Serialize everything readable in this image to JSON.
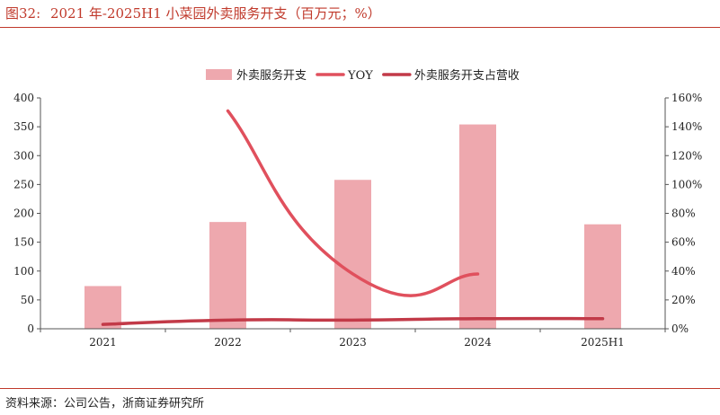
{
  "figure": {
    "number": "图32:",
    "title": "2021 年-2025H1 小菜园外卖服务开支（百万元；%）"
  },
  "source": "资料来源：公司公告，浙商证券研究所",
  "colors": {
    "bar": "#eea8ae",
    "yoy": "#e0505d",
    "share": "#c23a48",
    "accent": "#c0392b"
  },
  "chart_data": {
    "type": "bar",
    "categories": [
      "2021",
      "2022",
      "2023",
      "2024",
      "2025H1"
    ],
    "y_left": {
      "min": 0,
      "max": 400,
      "step": 50
    },
    "y_right": {
      "min": 0,
      "max": 160,
      "step": 20,
      "unit": "%"
    },
    "legend_position": "top-center",
    "grid": false,
    "series": [
      {
        "name": "外卖服务开支",
        "kind": "bar",
        "axis": "left",
        "values": [
          74,
          185,
          258,
          354,
          181
        ]
      },
      {
        "name": "YOY",
        "kind": "line",
        "axis": "right",
        "values": [
          null,
          151,
          38,
          38,
          null
        ]
      },
      {
        "name": "外卖服务开支占营收",
        "kind": "line",
        "axis": "right",
        "values": [
          3,
          6,
          6,
          7,
          7
        ]
      }
    ]
  }
}
